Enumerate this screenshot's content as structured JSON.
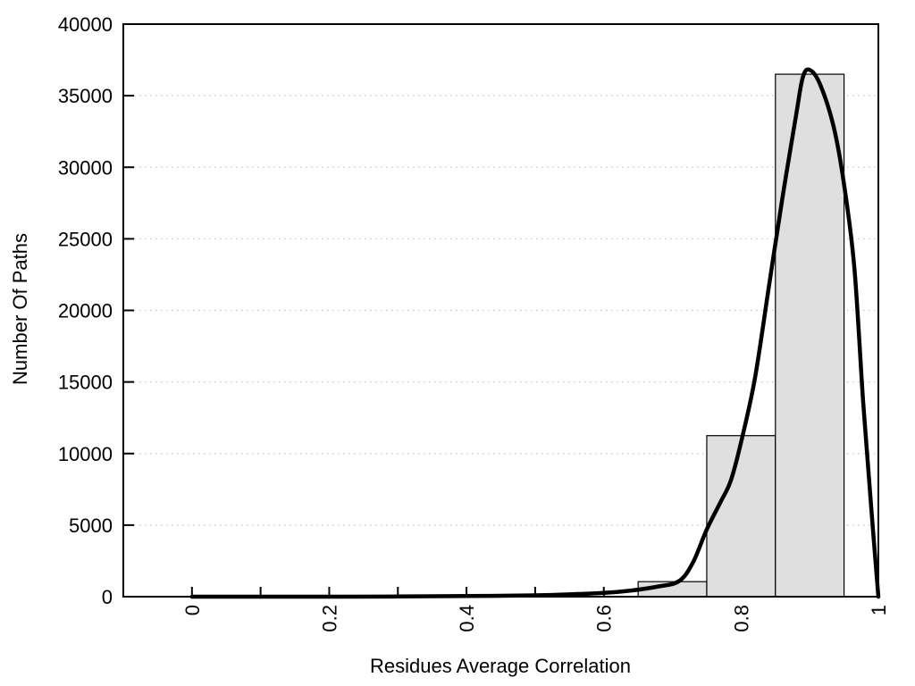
{
  "chart_data": {
    "type": "bar",
    "subtype": "histogram_with_density_curve",
    "title": "",
    "xlabel": "Residues Average Correlation",
    "ylabel": "Number Of Paths",
    "xlim": [
      -0.1,
      1.0
    ],
    "ylim": [
      0,
      40000
    ],
    "grid": "horizontal-dotted",
    "legend": "none",
    "x_axis": {
      "minor_tick_values": [
        0,
        0.1,
        0.2,
        0.3,
        0.4,
        0.5,
        0.6,
        0.7,
        0.8,
        0.9,
        1.0
      ],
      "labeled_ticks": [
        {
          "value": 0,
          "label": "0"
        },
        {
          "value": 0.2,
          "label": "0.2"
        },
        {
          "value": 0.4,
          "label": "0.4"
        },
        {
          "value": 0.6,
          "label": "0.6"
        },
        {
          "value": 0.8,
          "label": "0.8"
        },
        {
          "value": 1,
          "label": "1"
        }
      ],
      "label_rotation_deg": -90
    },
    "y_axis": {
      "ticks": [
        {
          "value": 0,
          "label": "0"
        },
        {
          "value": 5000,
          "label": "5000"
        },
        {
          "value": 10000,
          "label": "10000"
        },
        {
          "value": 15000,
          "label": "15000"
        },
        {
          "value": 20000,
          "label": "20000"
        },
        {
          "value": 25000,
          "label": "25000"
        },
        {
          "value": 30000,
          "label": "30000"
        },
        {
          "value": 35000,
          "label": "35000"
        },
        {
          "value": 40000,
          "label": "40000"
        }
      ]
    },
    "bars": [
      {
        "x_start": 0.65,
        "x_end": 0.75,
        "count": 1050
      },
      {
        "x_start": 0.75,
        "x_end": 0.85,
        "count": 11250
      },
      {
        "x_start": 0.85,
        "x_end": 0.95,
        "count": 36500
      }
    ],
    "density_curve": {
      "points": [
        [
          0.0,
          0
        ],
        [
          0.1,
          0
        ],
        [
          0.2,
          0
        ],
        [
          0.3,
          15
        ],
        [
          0.4,
          45
        ],
        [
          0.5,
          95
        ],
        [
          0.55,
          160
        ],
        [
          0.6,
          260
        ],
        [
          0.64,
          430
        ],
        [
          0.68,
          720
        ],
        [
          0.71,
          1100
        ],
        [
          0.73,
          2400
        ],
        [
          0.75,
          4700
        ],
        [
          0.77,
          6600
        ],
        [
          0.785,
          8100
        ],
        [
          0.8,
          10800
        ],
        [
          0.82,
          15200
        ],
        [
          0.84,
          21500
        ],
        [
          0.86,
          27800
        ],
        [
          0.88,
          33600
        ],
        [
          0.89,
          36300
        ],
        [
          0.9,
          36800
        ],
        [
          0.915,
          35800
        ],
        [
          0.935,
          32800
        ],
        [
          0.95,
          28800
        ],
        [
          0.965,
          23000
        ],
        [
          0.978,
          13500
        ],
        [
          0.99,
          6000
        ],
        [
          1.0,
          0
        ]
      ]
    },
    "colors": {
      "background": "#ffffff",
      "bar_fill": "#dfdfdf",
      "bar_border": "#000000",
      "curve": "#000000",
      "grid": "#c6c6c6",
      "frame": "#000000",
      "text": "#000000"
    }
  }
}
